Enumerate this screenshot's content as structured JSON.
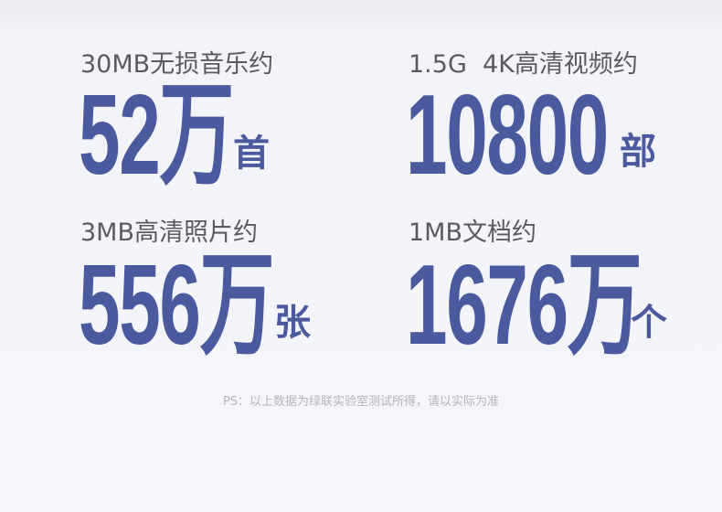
{
  "stats": [
    {
      "label": "30MB无损音乐约",
      "value": "52万",
      "unit": "首"
    },
    {
      "label": "1.5G  4K高清视频约",
      "value": "10800",
      "unit": "部"
    },
    {
      "label": "3MB高清照片约",
      "value": "556万",
      "unit": "张"
    },
    {
      "label": "1MB文档约",
      "value": "1676万",
      "unit": "个"
    }
  ],
  "footnote": "PS：以上数据为绿联实验室测试所得，请以实际为准",
  "colors": {
    "accent": "#4b5a9f",
    "label": "#595b60",
    "background": "#f4f6fb"
  }
}
